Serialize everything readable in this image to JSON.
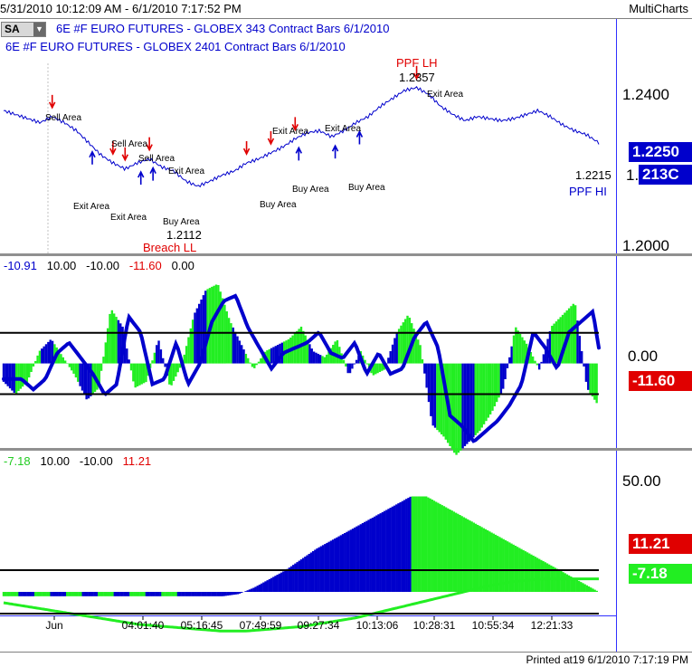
{
  "titlebar": {
    "left": "5/31/2010 10:12:09 AM - 6/1/2010 7:17:52 PM",
    "right": "MultiCharts"
  },
  "footer": "Printed at19 6/1/2010 7:17:19 PM",
  "sa_button": {
    "label": "SA",
    "icon": "dropdown-arrow-icon"
  },
  "panel1": {
    "line1": "6E #F  EURO FUTURES - GLOBEX  343 Contract Bars  6/1/2010",
    "line2": "6E #F  EURO FUTURES - GLOBEX  2401 Contract Bars  6/1/2010",
    "labels": {
      "ppf_lh": "PPF LH",
      "ppf_lh_value": "1.2357",
      "breach_ll": "Breach LL",
      "breach_ll_value": "1.2112",
      "ppf_hl_value": "1.2215",
      "ppf_hl": "PPF HI",
      "sell_area_1": "Sell Area",
      "sell_area_2": "Sell Area",
      "sell_area_3": "Sell Area",
      "exit_area_1": "Exit Area",
      "exit_area_2": "Exit Area",
      "exit_area_3": "Exit Area",
      "exit_area_4": "Exit Area",
      "exit_area_5": "Exit Area",
      "exit_area_6": "Exit Area",
      "buy_area_1": "Buy Area",
      "buy_area_2": "Buy Area",
      "buy_area_3": "Buy Area",
      "buy_area_4": "Buy Area"
    },
    "axis_ticks": [
      "1.2400",
      "1.2000"
    ],
    "tags": {
      "price": "1.2250",
      "bars": "213C",
      "partial": "1."
    }
  },
  "panel2": {
    "readouts": [
      "-10.91",
      "10.00",
      "-10.00",
      "-11.60",
      "0.00"
    ],
    "axis_ticks": [
      "0.00"
    ],
    "tag": "-11.60"
  },
  "panel3": {
    "readouts": [
      "-7.18",
      "10.00",
      "-10.00",
      "11.21"
    ],
    "axis_ticks": [
      "50.00"
    ],
    "tags": [
      "11.21",
      "-7.18"
    ]
  },
  "x_axis": [
    "Jun",
    "04:01:40",
    "05:16:45",
    "07:49:59",
    "09:27:34",
    "10:13:06",
    "10:28:31",
    "10:55:34",
    "12:21:33"
  ],
  "colors": {
    "blue": "#0000cc",
    "green": "#22ee22",
    "red": "#e00000",
    "bg": "#ffffff"
  },
  "chart_data": [
    {
      "type": "line",
      "title": "6E #F EURO FUTURES - GLOBEX",
      "ylim": [
        1.195,
        1.2525
      ],
      "y_ticks": [
        1.24,
        1.2
      ],
      "series": [
        {
          "values": [
            1.23,
            1.229,
            1.228,
            1.227,
            1.2285,
            1.227,
            1.225,
            1.222,
            1.219,
            1.217,
            1.2155,
            1.217,
            1.218,
            1.216,
            1.215,
            1.2125,
            1.2112,
            1.2125,
            1.214,
            1.215,
            1.217,
            1.218,
            1.2195,
            1.221,
            1.223,
            1.2245,
            1.225,
            1.2235,
            1.225,
            1.227,
            1.2285,
            1.231,
            1.233,
            1.235,
            1.2357,
            1.234,
            1.231,
            1.229,
            1.2275,
            1.2285,
            1.228,
            1.2275,
            1.228,
            1.229,
            1.23,
            1.2285,
            1.2265,
            1.225,
            1.224,
            1.222
          ]
        }
      ],
      "sell_arrows_at": [
        4,
        9,
        10,
        12,
        20,
        22,
        24,
        34
      ],
      "buy_arrows_at": [
        7,
        11,
        12,
        24,
        27,
        29
      ]
    },
    {
      "type": "area",
      "ylim": [
        -13.5,
        15
      ],
      "reference_lines": [
        5,
        -5
      ],
      "histogram": [
        -3,
        -5,
        -3,
        2,
        4,
        1,
        -2,
        -6,
        -4,
        9,
        6,
        -4,
        -3,
        4,
        -4,
        0,
        8,
        12,
        13,
        7,
        3,
        -1,
        2,
        3,
        4,
        6,
        2,
        1,
        4,
        -2,
        2,
        -2,
        -1,
        5,
        8,
        3,
        -10,
        -12,
        -15,
        -13,
        -11,
        -8,
        -4,
        6,
        3,
        -1,
        6,
        8,
        10,
        -4,
        -7
      ]
    },
    {
      "type": "area",
      "ylim": [
        -10,
        58
      ],
      "reference_lines": [
        10,
        -10
      ],
      "histogram": [
        -2,
        -2,
        -2,
        -2,
        -2,
        -2,
        -2,
        -2,
        -2,
        -2,
        -2,
        -2,
        -2,
        -2,
        -2,
        -1,
        2,
        6,
        10,
        15,
        20,
        24,
        28,
        32,
        36,
        40,
        44,
        44,
        40,
        36,
        32,
        28,
        24,
        20,
        16,
        12,
        8,
        4,
        0
      ],
      "slow_line": [
        -5,
        -7,
        -9,
        -11,
        -13,
        -15,
        -16,
        -17,
        -18,
        -18,
        -17,
        -16,
        -14,
        -12,
        -9,
        -6,
        -3,
        0,
        3,
        5,
        6,
        6,
        6
      ]
    }
  ]
}
